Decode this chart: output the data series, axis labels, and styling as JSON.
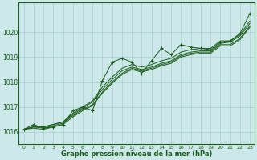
{
  "title": "Graphe pression niveau de la mer (hPa)",
  "background_color": "#cce8e8",
  "grid_color": "#aacfcf",
  "line_color": "#1a5c1a",
  "x_ticks": [
    0,
    1,
    2,
    3,
    4,
    5,
    6,
    7,
    8,
    9,
    10,
    11,
    12,
    13,
    14,
    15,
    16,
    17,
    18,
    19,
    20,
    21,
    22,
    23
  ],
  "ylim": [
    1015.5,
    1021.2
  ],
  "y_ticks": [
    1016,
    1017,
    1018,
    1019,
    1020
  ],
  "series_smooth": [
    [
      1016.1,
      1016.2,
      1016.2,
      1016.3,
      1016.4,
      1016.7,
      1016.95,
      1017.2,
      1017.7,
      1018.1,
      1018.45,
      1018.6,
      1018.5,
      1018.6,
      1018.75,
      1018.85,
      1019.1,
      1019.2,
      1019.25,
      1019.25,
      1019.55,
      1019.6,
      1019.85,
      1020.35
    ],
    [
      1016.1,
      1016.2,
      1016.2,
      1016.3,
      1016.4,
      1016.75,
      1017.0,
      1017.25,
      1017.8,
      1018.2,
      1018.55,
      1018.7,
      1018.6,
      1018.7,
      1018.85,
      1018.95,
      1019.2,
      1019.3,
      1019.35,
      1019.35,
      1019.65,
      1019.65,
      1019.9,
      1020.45
    ],
    [
      1016.1,
      1016.2,
      1016.15,
      1016.25,
      1016.35,
      1016.65,
      1016.9,
      1017.1,
      1017.6,
      1018.0,
      1018.35,
      1018.55,
      1018.45,
      1018.55,
      1018.7,
      1018.8,
      1019.05,
      1019.15,
      1019.2,
      1019.2,
      1019.5,
      1019.5,
      1019.75,
      1020.25
    ],
    [
      1016.1,
      1016.15,
      1016.1,
      1016.2,
      1016.3,
      1016.6,
      1016.85,
      1017.05,
      1017.55,
      1017.95,
      1018.3,
      1018.5,
      1018.4,
      1018.5,
      1018.65,
      1018.75,
      1019.0,
      1019.1,
      1019.15,
      1019.15,
      1019.45,
      1019.45,
      1019.7,
      1020.2
    ]
  ],
  "series_marker": [
    1016.1,
    1016.3,
    1016.15,
    1016.2,
    1016.3,
    1016.85,
    1017.0,
    1016.85,
    1018.05,
    1018.8,
    1018.95,
    1018.8,
    1018.35,
    1018.85,
    1019.35,
    1019.1,
    1019.5,
    1019.4,
    1019.35,
    1019.3,
    1019.6,
    1019.65,
    1019.95,
    1020.75
  ]
}
